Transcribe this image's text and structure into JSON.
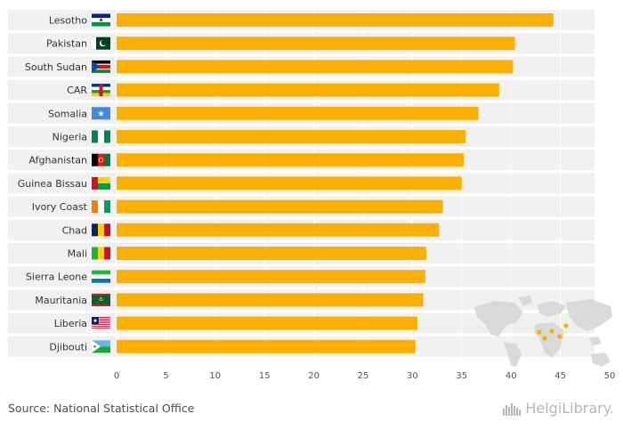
{
  "chart_data": {
    "type": "bar",
    "orientation": "horizontal",
    "categories": [
      "Lesotho",
      "Pakistan",
      "South Sudan",
      "CAR",
      "Somalia",
      "Nigeria",
      "Afghanistan",
      "Guinea Bissau",
      "Ivory Coast",
      "Chad",
      "Mali",
      "Sierra Leone",
      "Mauritania",
      "Liberia",
      "Djibouti"
    ],
    "values": [
      44.3,
      40.4,
      40.2,
      38.8,
      36.7,
      35.4,
      35.2,
      35.0,
      33.1,
      32.7,
      31.4,
      31.3,
      31.1,
      30.5,
      30.3
    ],
    "xlim": [
      0,
      50
    ],
    "xticks": [
      "0",
      "5",
      "10",
      "15",
      "20",
      "25",
      "30",
      "35",
      "40",
      "45",
      "50"
    ],
    "grid": true,
    "bar_color": "#fbb000",
    "row_background_color": "#f0f0f0"
  },
  "source": "Source: National Statistical Office",
  "brand": {
    "name": "HelgiLibrary.",
    "icon": "city-skyline-icon",
    "color": "#b5b5b5"
  },
  "flags": [
    "lesotho-flag-icon",
    "pakistan-flag-icon",
    "south-sudan-flag-icon",
    "car-flag-icon",
    "somalia-flag-icon",
    "nigeria-flag-icon",
    "afghanistan-flag-icon",
    "guinea-bissau-flag-icon",
    "ivory-coast-flag-icon",
    "chad-flag-icon",
    "mali-flag-icon",
    "sierra-leone-flag-icon",
    "mauritania-flag-icon",
    "liberia-flag-icon",
    "djibouti-flag-icon"
  ],
  "world_map": {
    "icon": "world-map-icon",
    "highlight_color": "#fbb000",
    "land_color": "#d9d9d9"
  }
}
